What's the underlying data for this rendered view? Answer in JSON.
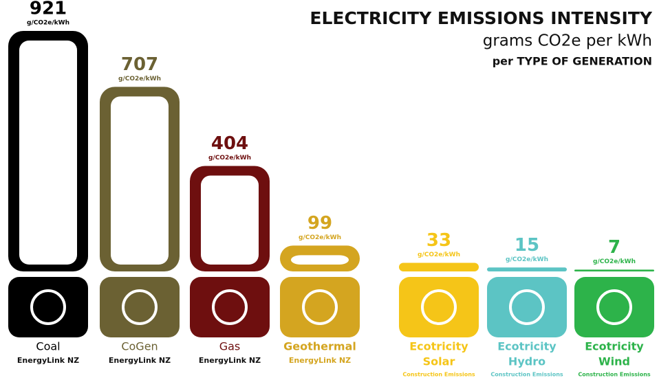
{
  "chart_data": {
    "type": "bar",
    "title": "ELECTRICITY EMISSIONS INTENSITY",
    "subtitle": "grams CO2e per kWh",
    "subtitle2": "per TYPE OF GENERATION",
    "unit": "g/CO2e/kWh",
    "category_prefixes": [
      null,
      null,
      null,
      null,
      "Ecotricity",
      "Ecotricity",
      "Ecotricity"
    ],
    "categories": [
      "Coal",
      "CoGen",
      "Gas",
      "Geothermal",
      "Solar",
      "Hydro",
      "Wind"
    ],
    "sources": [
      "EnergyLink NZ",
      "EnergyLink NZ",
      "EnergyLink NZ",
      "EnergyLink NZ",
      "Construction Emissions",
      "Construction Emissions",
      "Construction Emissions"
    ],
    "values": [
      921,
      707,
      404,
      99,
      33,
      15,
      7
    ],
    "colors": [
      "#000000",
      "#6b6133",
      "#6e0f0f",
      "#d4a520",
      "#f5c518",
      "#5cc4c4",
      "#2db34a"
    ]
  }
}
